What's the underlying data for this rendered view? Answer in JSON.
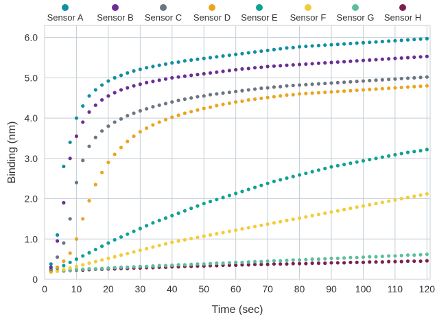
{
  "chart_data": {
    "type": "scatter",
    "title": "",
    "xlabel": "Time (sec)",
    "ylabel": "Binding (nm)",
    "xlim": [
      0,
      121
    ],
    "ylim": [
      0,
      6.3
    ],
    "xticks": [
      0,
      10,
      20,
      30,
      40,
      50,
      60,
      70,
      80,
      90,
      100,
      110,
      120
    ],
    "xtick_labels": [
      "0",
      "10",
      "20",
      "30",
      "40",
      "50",
      "60",
      "70",
      "80",
      "90",
      "100",
      "110",
      "120"
    ],
    "yticks": [
      0,
      1,
      2,
      3,
      4,
      5,
      6
    ],
    "ytick_labels": [
      "0",
      "1.0",
      "2.0",
      "3.0",
      "4.0",
      "5.0",
      "6.0"
    ],
    "grid": true,
    "legend_position": "top",
    "x": [
      2,
      4,
      6,
      8,
      10,
      12,
      14,
      16,
      18,
      20,
      22,
      24,
      26,
      28,
      30,
      32,
      34,
      36,
      38,
      40,
      42,
      44,
      46,
      48,
      50,
      52,
      54,
      56,
      58,
      60,
      62,
      64,
      66,
      68,
      70,
      72,
      74,
      76,
      78,
      80,
      82,
      84,
      86,
      88,
      90,
      92,
      94,
      96,
      98,
      100,
      102,
      104,
      106,
      108,
      110,
      112,
      114,
      116,
      118,
      120
    ],
    "series": [
      {
        "name": "Sensor A",
        "color": "#0f8fa3",
        "values": [
          0.38,
          1.1,
          2.8,
          3.4,
          4.0,
          4.3,
          4.55,
          4.7,
          4.82,
          4.92,
          5.0,
          5.06,
          5.12,
          5.17,
          5.21,
          5.25,
          5.28,
          5.31,
          5.34,
          5.37,
          5.39,
          5.42,
          5.44,
          5.46,
          5.48,
          5.5,
          5.52,
          5.54,
          5.56,
          5.58,
          5.6,
          5.62,
          5.64,
          5.66,
          5.68,
          5.7,
          5.72,
          5.74,
          5.75,
          5.77,
          5.78,
          5.79,
          5.8,
          5.81,
          5.82,
          5.83,
          5.84,
          5.85,
          5.86,
          5.87,
          5.88,
          5.89,
          5.9,
          5.91,
          5.92,
          5.93,
          5.94,
          5.95,
          5.96,
          5.97
        ]
      },
      {
        "name": "Sensor B",
        "color": "#6a2e94",
        "values": [
          0.3,
          0.95,
          1.9,
          3.0,
          3.55,
          3.9,
          4.15,
          4.32,
          4.45,
          4.55,
          4.63,
          4.7,
          4.75,
          4.8,
          4.84,
          4.88,
          4.91,
          4.94,
          4.97,
          5.0,
          5.02,
          5.04,
          5.06,
          5.08,
          5.1,
          5.12,
          5.14,
          5.16,
          5.18,
          5.2,
          5.22,
          5.23,
          5.25,
          5.26,
          5.28,
          5.29,
          5.3,
          5.31,
          5.32,
          5.33,
          5.34,
          5.35,
          5.36,
          5.37,
          5.38,
          5.39,
          5.4,
          5.41,
          5.42,
          5.43,
          5.44,
          5.45,
          5.46,
          5.47,
          5.48,
          5.49,
          5.5,
          5.51,
          5.52,
          5.53
        ]
      },
      {
        "name": "Sensor C",
        "color": "#6c7580",
        "values": [
          0.25,
          0.55,
          0.9,
          1.5,
          2.4,
          2.95,
          3.3,
          3.52,
          3.68,
          3.8,
          3.9,
          3.98,
          4.06,
          4.12,
          4.18,
          4.23,
          4.28,
          4.32,
          4.36,
          4.4,
          4.44,
          4.47,
          4.5,
          4.53,
          4.55,
          4.58,
          4.6,
          4.62,
          4.64,
          4.66,
          4.68,
          4.7,
          4.72,
          4.74,
          4.75,
          4.77,
          4.78,
          4.8,
          4.81,
          4.82,
          4.83,
          4.84,
          4.85,
          4.86,
          4.87,
          4.88,
          4.89,
          4.9,
          4.91,
          4.92,
          4.93,
          4.94,
          4.95,
          4.96,
          4.97,
          4.98,
          4.99,
          5.0,
          5.01,
          5.02
        ]
      },
      {
        "name": "Sensor D",
        "color": "#eba41f",
        "values": [
          0.2,
          0.3,
          0.45,
          0.65,
          1.0,
          1.5,
          1.95,
          2.35,
          2.65,
          2.9,
          3.1,
          3.27,
          3.42,
          3.55,
          3.66,
          3.75,
          3.83,
          3.9,
          3.96,
          4.02,
          4.07,
          4.12,
          4.16,
          4.2,
          4.24,
          4.27,
          4.31,
          4.34,
          4.37,
          4.4,
          4.42,
          4.45,
          4.47,
          4.49,
          4.51,
          4.53,
          4.55,
          4.57,
          4.58,
          4.6,
          4.61,
          4.62,
          4.63,
          4.64,
          4.65,
          4.66,
          4.67,
          4.68,
          4.69,
          4.7,
          4.71,
          4.72,
          4.73,
          4.74,
          4.75,
          4.76,
          4.77,
          4.78,
          4.79,
          4.8
        ]
      },
      {
        "name": "Sensor E",
        "color": "#11a192",
        "values": [
          0.22,
          0.28,
          0.34,
          0.42,
          0.5,
          0.58,
          0.66,
          0.74,
          0.82,
          0.9,
          0.98,
          1.05,
          1.12,
          1.19,
          1.26,
          1.33,
          1.4,
          1.46,
          1.52,
          1.58,
          1.64,
          1.7,
          1.76,
          1.82,
          1.88,
          1.93,
          1.98,
          2.03,
          2.08,
          2.13,
          2.18,
          2.23,
          2.28,
          2.33,
          2.38,
          2.43,
          2.47,
          2.51,
          2.55,
          2.59,
          2.63,
          2.67,
          2.71,
          2.75,
          2.79,
          2.82,
          2.85,
          2.88,
          2.91,
          2.94,
          2.97,
          3.0,
          3.03,
          3.06,
          3.09,
          3.12,
          3.15,
          3.17,
          3.19,
          3.22
        ]
      },
      {
        "name": "Sensor F",
        "color": "#f2cc3a",
        "values": [
          0.18,
          0.2,
          0.24,
          0.28,
          0.32,
          0.36,
          0.4,
          0.44,
          0.48,
          0.52,
          0.56,
          0.6,
          0.64,
          0.68,
          0.72,
          0.76,
          0.8,
          0.84,
          0.88,
          0.92,
          0.95,
          0.98,
          1.01,
          1.04,
          1.07,
          1.1,
          1.13,
          1.16,
          1.19,
          1.22,
          1.25,
          1.28,
          1.31,
          1.34,
          1.37,
          1.4,
          1.43,
          1.46,
          1.49,
          1.52,
          1.55,
          1.58,
          1.61,
          1.64,
          1.67,
          1.7,
          1.73,
          1.76,
          1.79,
          1.82,
          1.85,
          1.88,
          1.91,
          1.94,
          1.97,
          2.0,
          2.03,
          2.06,
          2.09,
          2.12
        ]
      },
      {
        "name": "Sensor G",
        "color": "#5dbf9a",
        "values": [
          0.2,
          0.21,
          0.22,
          0.23,
          0.24,
          0.25,
          0.26,
          0.26,
          0.27,
          0.28,
          0.29,
          0.3,
          0.3,
          0.31,
          0.32,
          0.32,
          0.33,
          0.34,
          0.34,
          0.35,
          0.36,
          0.36,
          0.37,
          0.38,
          0.38,
          0.39,
          0.4,
          0.4,
          0.41,
          0.42,
          0.42,
          0.43,
          0.44,
          0.44,
          0.45,
          0.46,
          0.46,
          0.47,
          0.48,
          0.48,
          0.49,
          0.5,
          0.5,
          0.51,
          0.52,
          0.52,
          0.53,
          0.54,
          0.54,
          0.55,
          0.56,
          0.56,
          0.57,
          0.58,
          0.58,
          0.59,
          0.6,
          0.6,
          0.61,
          0.62
        ]
      },
      {
        "name": "Sensor H",
        "color": "#7d1f4e",
        "values": [
          0.2,
          0.21,
          0.21,
          0.22,
          0.23,
          0.23,
          0.24,
          0.25,
          0.25,
          0.26,
          0.26,
          0.27,
          0.27,
          0.28,
          0.28,
          0.29,
          0.29,
          0.3,
          0.3,
          0.31,
          0.31,
          0.32,
          0.32,
          0.33,
          0.33,
          0.34,
          0.34,
          0.35,
          0.35,
          0.35,
          0.36,
          0.36,
          0.37,
          0.37,
          0.37,
          0.38,
          0.38,
          0.38,
          0.39,
          0.39,
          0.39,
          0.4,
          0.4,
          0.4,
          0.41,
          0.41,
          0.41,
          0.42,
          0.42,
          0.42,
          0.43,
          0.43,
          0.43,
          0.44,
          0.44,
          0.44,
          0.45,
          0.45,
          0.45,
          0.46
        ]
      }
    ]
  }
}
